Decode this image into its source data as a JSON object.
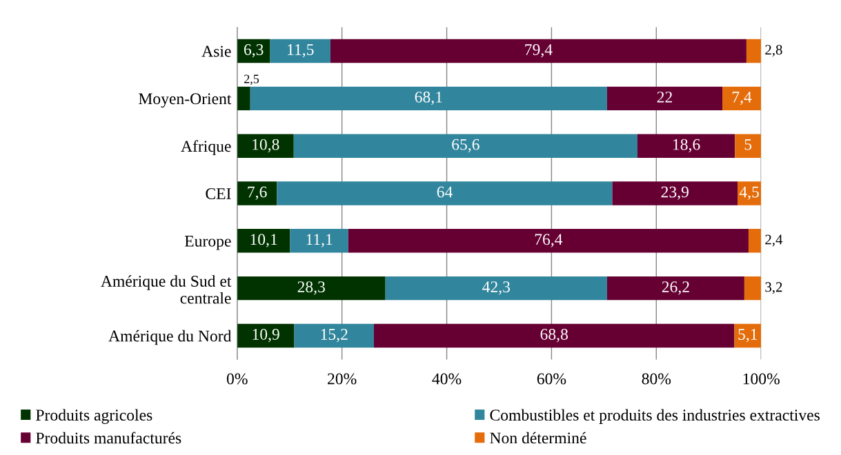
{
  "chart_data": {
    "type": "bar",
    "orientation": "horizontal",
    "stacked": true,
    "categories": [
      "Asie",
      "Moyen-Orient",
      "Afrique",
      "CEI",
      "Europe",
      "Amérique du Sud et\ncentrale",
      "Amérique du Nord"
    ],
    "series": [
      {
        "name": "Produits agricoles",
        "color": "#003300",
        "values": [
          6.3,
          2.5,
          10.8,
          7.6,
          10.1,
          28.3,
          10.9
        ],
        "value_labels": [
          "6,3",
          "2,5",
          "10,8",
          "7,6",
          "10,1",
          "28,3",
          "10,9"
        ]
      },
      {
        "name": "Combustibles et produits des industries extractives",
        "color": "#31859c",
        "values": [
          11.5,
          68.1,
          65.6,
          64,
          11.1,
          42.3,
          15.2
        ],
        "value_labels": [
          "11,5",
          "68,1",
          "65,6",
          "64",
          "11,1",
          "42,3",
          "15,2"
        ]
      },
      {
        "name": "Produits manufacturés",
        "color": "#660033",
        "values": [
          79.4,
          22,
          18.6,
          23.9,
          76.4,
          26.2,
          68.8
        ],
        "value_labels": [
          "79,4",
          "22",
          "18,6",
          "23,9",
          "76,4",
          "26,2",
          "68,8"
        ]
      },
      {
        "name": "Non déterminé",
        "color": "#e46c0a",
        "values": [
          2.8,
          7.4,
          5,
          4.5,
          2.4,
          3.2,
          5.1
        ],
        "value_labels": [
          "2,8",
          "7,4",
          "5",
          "4,5",
          "2,4",
          "3,2",
          "5,1"
        ]
      }
    ],
    "xlim": [
      0,
      100
    ],
    "xticks": [
      {
        "value": 0,
        "label": "0%"
      },
      {
        "value": 20,
        "label": "20%"
      },
      {
        "value": 40,
        "label": "40%"
      },
      {
        "value": 60,
        "label": "60%"
      },
      {
        "value": 80,
        "label": "80%"
      },
      {
        "value": 100,
        "label": "100%"
      }
    ],
    "grid": "x",
    "legend": "bottom"
  }
}
